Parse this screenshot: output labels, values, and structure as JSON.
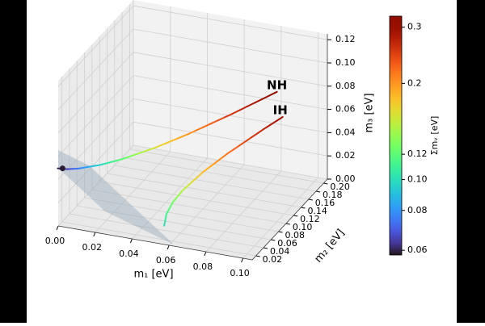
{
  "chart_data": {
    "type": "line3d",
    "x_label": "m₁ [eV]",
    "y_label": "m₂ [eV]",
    "z_label": "m₃ [eV]",
    "colorbar_label": "Σmᵥ [eV]",
    "colormap": "turbo",
    "cscale": "log",
    "clim": [
      0.058,
      0.325
    ],
    "cticks": [
      0.06,
      0.08,
      {
        "value": 0.1,
        "label": "0.10"
      },
      0.12,
      0.2,
      0.3
    ],
    "xlim": [
      0,
      0.105
    ],
    "ylim": [
      0.01,
      0.21
    ],
    "zlim": [
      0,
      0.125
    ],
    "xticks": [
      {
        "value": 0,
        "label": "0.00"
      },
      0.02,
      0.04,
      0.06,
      0.08,
      {
        "value": 0.1,
        "label": "0.10"
      }
    ],
    "yticks": [
      0.02,
      0.04,
      0.06,
      0.08,
      {
        "value": 0.1,
        "label": "0.10"
      },
      0.12,
      0.14,
      0.16,
      0.18,
      {
        "value": 0.2,
        "label": "0.20"
      }
    ],
    "zticks": [
      {
        "value": 0,
        "label": "0.00"
      },
      0.02,
      0.04,
      0.06,
      0.08,
      {
        "value": 0.1,
        "label": "0.10"
      },
      0.12
    ],
    "grid": true,
    "series": [
      {
        "name": "NH",
        "m1": [
          0,
          0.005,
          0.01,
          0.02,
          0.03,
          0.045,
          0.06,
          0.08,
          0.1
        ],
        "m2": [
          0.00866,
          0.01,
          0.01323,
          0.02179,
          0.03122,
          0.04583,
          0.06062,
          0.08047,
          0.10037
        ],
        "m3": [
          0.05,
          0.05025,
          0.05099,
          0.05385,
          0.05831,
          0.06727,
          0.0781,
          0.09434,
          0.1118
        ],
        "sum": [
          0.0587,
          0.0652,
          0.0742,
          0.0956,
          0.1195,
          0.1581,
          0.1987,
          0.2548,
          0.3122
        ]
      },
      {
        "name": "IH",
        "m1": [
          0.04924,
          0.05025,
          0.05315,
          0.05766,
          0.06671,
          0.07762,
          0.09394,
          0.10259
        ],
        "m2": [
          0.05,
          0.05099,
          0.05385,
          0.05831,
          0.06727,
          0.0781,
          0.09434,
          0.10296
        ],
        "m3": [
          0,
          0.01,
          0.02,
          0.03,
          0.045,
          0.06,
          0.08,
          0.09
        ],
        "sum": [
          0.0992,
          0.1112,
          0.127,
          0.146,
          0.179,
          0.2157,
          0.2683,
          0.2955
        ]
      }
    ]
  }
}
